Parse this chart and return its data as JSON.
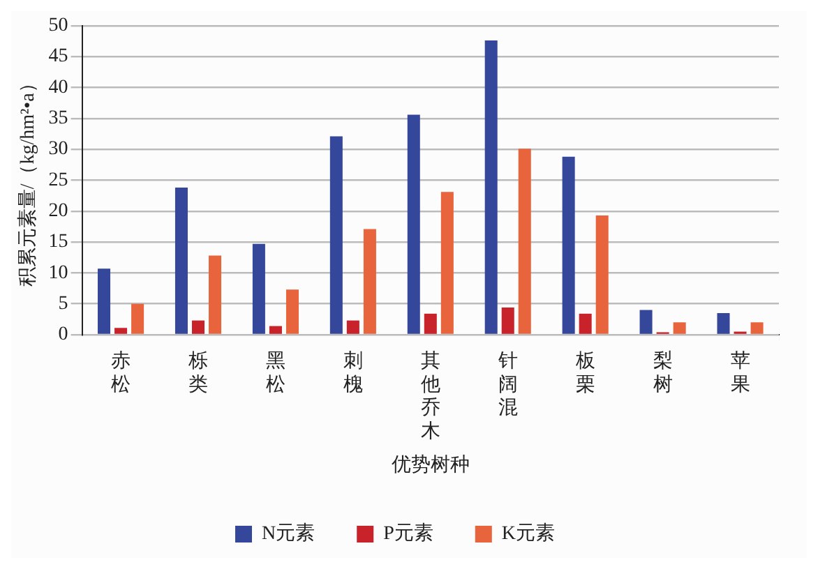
{
  "chart_data": {
    "type": "bar",
    "xlabel": "优势树种",
    "ylabel": "积累元素量/（kg/hm²•a）",
    "categories": [
      "赤松",
      "栎类",
      "黑松",
      "刺槐",
      "其他乔木",
      "针阔混",
      "板栗",
      "梨树",
      "苹果"
    ],
    "series": [
      {
        "name": "N元素",
        "color": "#34479a",
        "values": [
          10.7,
          23.8,
          14.7,
          32.1,
          35.6,
          47.6,
          28.8,
          4.0,
          3.5
        ]
      },
      {
        "name": "P元素",
        "color": "#c8232b",
        "values": [
          1.1,
          2.3,
          1.4,
          2.3,
          3.4,
          4.4,
          3.4,
          0.4,
          0.5
        ]
      },
      {
        "name": "K元素",
        "color": "#e8643c",
        "values": [
          5.0,
          12.8,
          7.3,
          17.1,
          23.1,
          30.1,
          19.3,
          2.0,
          2.0
        ]
      }
    ],
    "ylim": [
      0,
      50
    ],
    "yticks": [
      0,
      5,
      10,
      15,
      20,
      25,
      30,
      35,
      40,
      45,
      50
    ],
    "grid": "y",
    "legend": "bottom"
  }
}
